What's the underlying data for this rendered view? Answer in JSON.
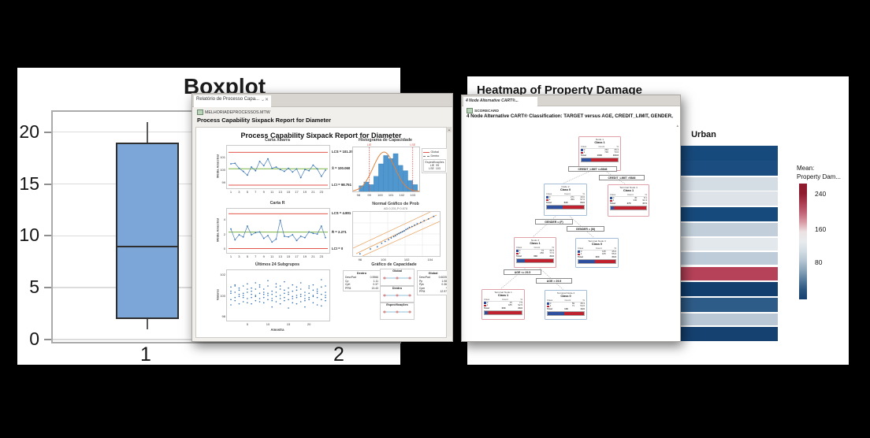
{
  "sixpack_window": {
    "tab_title": "Relatório de Processo Capa...",
    "tab_min": "⌄",
    "tab_close": "✕",
    "worksheet": "MELHORIADEPROCESSOS.MTW",
    "heading": "Process Capability Sixpack Report for Diameter",
    "report_title": "Process Capability Sixpack Report for Diameter"
  },
  "cart_window": {
    "tab_title": "4 Node Alternative CART®...",
    "worksheet": "SCORECARD",
    "heading": "4 Node Alternative CART® Classification: TARGET versus AGE, CREDIT_LIMIT, GENDER, ...",
    "class_colors": [
      "#2e4f9e",
      "#c0212e"
    ],
    "table_header": [
      "Class",
      "Count",
      "%"
    ],
    "total_label": "Total",
    "splits": [
      "CREDIT_LIMIT <=5846",
      "CREDIT_LIMIT >5846",
      "GENDER = (F)",
      "GENDER = (M)",
      "AGE <= 29.5",
      "AGE > 29.5"
    ],
    "nodes": [
      {
        "title": "Node 1",
        "cls": "Class 1",
        "accent": "red",
        "rows": [
          [
            "0",
            "264",
            "26.4"
          ],
          [
            "1",
            "736",
            "73.6"
          ]
        ],
        "total": [
          "1000",
          "100.0"
        ]
      },
      {
        "title": "Node 2",
        "cls": "Class 0",
        "accent": "blue",
        "rows": [
          [
            "0",
            "271",
            "43.0"
          ],
          [
            "1",
            "359",
            "57.0"
          ]
        ],
        "total": [
          "630",
          "63.0"
        ]
      },
      {
        "title": "Terminal Node 4",
        "cls": "Class 1",
        "accent": "red",
        "rows": [
          [
            "0",
            "30",
            "8.1"
          ],
          [
            "1",
            "340",
            "91.9"
          ]
        ],
        "total": [
          "370",
          "37.0"
        ]
      },
      {
        "title": "Node 3",
        "cls": "Class 1",
        "accent": "red",
        "rows": [
          [
            "0",
            "74",
            "22.4"
          ],
          [
            "1",
            "256",
            "77.6"
          ]
        ],
        "total": [
          "330",
          "33.0"
        ]
      },
      {
        "title": "Terminal Node 3",
        "cls": "Class 0",
        "accent": "blue",
        "rows": [
          [
            "0",
            "135",
            "45.0"
          ],
          [
            "1",
            "165",
            "55.0"
          ]
        ],
        "total": [
          "300",
          "30.0"
        ]
      },
      {
        "title": "Terminal Node 1",
        "cls": "Class 1",
        "accent": "red",
        "rows": [
          [
            "0",
            "15",
            "7.5"
          ],
          [
            "1",
            "185",
            "92.5"
          ]
        ],
        "total": [
          "200",
          "20.0"
        ]
      },
      {
        "title": "Terminal Node 2",
        "cls": "Class 0",
        "accent": "blue",
        "rows": [
          [
            "0",
            "59",
            "45.4"
          ],
          [
            "1",
            "71",
            "54.6"
          ]
        ],
        "total": [
          "130",
          "13.0"
        ]
      }
    ]
  },
  "chart_data": [
    {
      "id": "boxplot",
      "type": "boxplot",
      "title": "Boxplot",
      "yticks": [
        0,
        5,
        10,
        15,
        20
      ],
      "ylim": [
        -0.22,
        21.95
      ],
      "categories": [
        "1",
        "2"
      ],
      "series": [
        {
          "category": "1",
          "whisker_low": 1,
          "q1": 2,
          "median": 9,
          "q3": 19,
          "whisker_high": 21
        }
      ],
      "box_fill": "#7ba6d7",
      "box_border": "#2f2f2f",
      "note": "category 2 box occluded by overlapping window"
    },
    {
      "id": "xbar_chart",
      "type": "line",
      "title": "Carta Xbarra",
      "ylabel": "Média Amostral",
      "yticks": [
        101,
        100,
        99
      ],
      "xticks": [
        1,
        3,
        5,
        7,
        9,
        11,
        13,
        15,
        17,
        19,
        21,
        23
      ],
      "ylim": [
        98.5,
        101.9
      ],
      "ucl": 101.37,
      "center": 100.06,
      "lcl": 98.751,
      "labels": [
        "LCS = 101.370",
        "X̄ = 100.060",
        "LCI = 98.751"
      ],
      "values": [
        100.45,
        100.5,
        100.1,
        99.85,
        99.55,
        100.2,
        99.9,
        100.65,
        100.3,
        100.85,
        100.1,
        100.2,
        100.0,
        99.85,
        100.1,
        99.8,
        100.05,
        99.35,
        100.0,
        99.9,
        100.35,
        100.05,
        99.45,
        99.95
      ]
    },
    {
      "id": "r_chart",
      "type": "line",
      "title": "Carta R",
      "ylabel": "Média Amostral",
      "yticks": [
        4,
        2,
        0
      ],
      "xticks": [
        1,
        3,
        5,
        7,
        9,
        11,
        13,
        15,
        17,
        19,
        21,
        23
      ],
      "ylim": [
        -0.6,
        5.5
      ],
      "ucl": 4.801,
      "center": 2.271,
      "lcl": 0,
      "labels": [
        "LCS = 4.801",
        "R̄ = 2.271",
        "LCI = 0"
      ],
      "values": [
        2.7,
        1.2,
        1.9,
        1.6,
        3.1,
        1.9,
        2.2,
        2.3,
        1.4,
        1.8,
        0.9,
        1.3,
        3.9,
        1.7,
        1.6,
        1.9,
        1.1,
        1.7,
        1.5,
        2.3,
        2.1,
        2.0,
        3.1,
        1.5
      ]
    },
    {
      "id": "last24_subgroups",
      "type": "scatter",
      "title": "Últimos 24 Subgrupos",
      "ylabel": "Valores",
      "xlabel": "Amostra",
      "yticks": [
        102,
        100,
        98
      ],
      "xticks": [
        5,
        10,
        15,
        20
      ],
      "ylim": [
        97.6,
        102.4
      ],
      "groups": [
        [
          99.6,
          100.2,
          100.8,
          99.1,
          100.4
        ],
        [
          100.9,
          99.8,
          100.3,
          99.5,
          101.0
        ],
        [
          99.9,
          100.5,
          99.2,
          100.1,
          100.7
        ],
        [
          100.2,
          99.4,
          100.9,
          99.8,
          100.0
        ],
        [
          101.1,
          100.3,
          99.7,
          100.6,
          99.3
        ],
        [
          99.8,
          100.7,
          100.1,
          99.2,
          100.4
        ],
        [
          100.0,
          99.5,
          101.2,
          100.6,
          99.9
        ],
        [
          100.8,
          99.7,
          100.2,
          101.0,
          99.4
        ],
        [
          99.3,
          100.1,
          100.6,
          99.8,
          100.3
        ],
        [
          101.4,
          100.0,
          99.6,
          100.9,
          100.2
        ],
        [
          99.7,
          100.4,
          98.9,
          100.1,
          99.5
        ],
        [
          100.3,
          99.9,
          100.8,
          99.4,
          101.1
        ],
        [
          100.6,
          99.2,
          100.0,
          100.9,
          99.7
        ],
        [
          99.5,
          100.2,
          101.3,
          99.8,
          100.5
        ],
        [
          100.1,
          99.6,
          100.7,
          98.8,
          100.3
        ],
        [
          99.9,
          101.0,
          100.4,
          99.3,
          99.7
        ],
        [
          100.5,
          99.8,
          100.0,
          100.8,
          99.2
        ],
        [
          99.4,
          100.6,
          99.9,
          101.2,
          100.1
        ],
        [
          98.9,
          99.7,
          100.3,
          99.5,
          100.0
        ],
        [
          100.7,
          100.2,
          99.6,
          100.9,
          99.8
        ],
        [
          99.3,
          100.0,
          100.5,
          99.9,
          101.0
        ],
        [
          100.4,
          99.1,
          99.8,
          100.6,
          100.2
        ],
        [
          101.5,
          99.6,
          100.1,
          99.0,
          100.8
        ],
        [
          99.8,
          100.3,
          99.5,
          100.0,
          100.9
        ]
      ]
    },
    {
      "id": "capability_histogram",
      "type": "histogram",
      "title": "Histograma de Capacidade",
      "xticks": [
        98,
        99,
        100,
        101,
        102,
        103
      ],
      "xlim": [
        97.5,
        103.6
      ],
      "bin_start": 98.05,
      "bin_width": 0.45,
      "bin_heights": [
        0.15,
        0.25,
        0.18,
        0.4,
        0.73,
        0.95,
        0.87,
        1.0,
        0.69,
        0.55,
        0.29,
        0.18
      ],
      "curve": {
        "mean": 100.35,
        "sd": 1.0
      },
      "spec_lines": [
        {
          "label": "LIE",
          "x": 99
        },
        {
          "label": "LSE",
          "x": 103
        }
      ],
      "legend": [
        {
          "label": "Global",
          "style": "solid",
          "color": "#e2574c"
        },
        {
          "label": "Dentro",
          "style": "dashed",
          "color": "#777777"
        }
      ],
      "spec_box": {
        "title": "Especificações",
        "rows": [
          [
            "LIE",
            "99"
          ],
          [
            "LSE",
            "103"
          ]
        ]
      },
      "bar_color": "#4f97ce",
      "curve_color": "#e0813c"
    },
    {
      "id": "normal_probability_plot",
      "type": "scatter",
      "title": "Normal Gráfico de Prob",
      "subtitle": "AD:0.201,P:0.878",
      "xticks": [
        98,
        100,
        102,
        104
      ],
      "point_color": "#2e6db4",
      "line_color": "#e8a25e",
      "points": [
        [
          0.08,
          0.05
        ],
        [
          0.2,
          0.16
        ],
        [
          0.28,
          0.21
        ],
        [
          0.33,
          0.29
        ],
        [
          0.37,
          0.33
        ],
        [
          0.41,
          0.37
        ],
        [
          0.44,
          0.41
        ],
        [
          0.47,
          0.44
        ],
        [
          0.49,
          0.46
        ],
        [
          0.51,
          0.49
        ],
        [
          0.53,
          0.51
        ],
        [
          0.55,
          0.53
        ],
        [
          0.57,
          0.55
        ],
        [
          0.59,
          0.57
        ],
        [
          0.61,
          0.6
        ],
        [
          0.63,
          0.62
        ],
        [
          0.65,
          0.65
        ],
        [
          0.68,
          0.67
        ],
        [
          0.71,
          0.7
        ],
        [
          0.74,
          0.73
        ],
        [
          0.78,
          0.76
        ],
        [
          0.82,
          0.8
        ],
        [
          0.87,
          0.84
        ],
        [
          0.93,
          0.9
        ]
      ]
    },
    {
      "id": "capability_summary",
      "type": "table",
      "title": "Gráfico de Capacidade",
      "within": {
        "title": "Dentro",
        "rows": [
          [
            "DesvPad",
            "0.5966"
          ],
          [
            "Cp",
            "1.11"
          ],
          [
            "CpK",
            "0.37"
          ],
          [
            "PPM",
            "13.43"
          ]
        ]
      },
      "overall": {
        "title": "Global",
        "rows": [
          [
            "DesvPad",
            "0.6025"
          ],
          [
            "Pp",
            "1.08"
          ],
          [
            "Ppk",
            "0.36"
          ],
          [
            "Cpm",
            "*"
          ],
          [
            "PPM",
            "12.97"
          ]
        ]
      },
      "interval_labels": [
        "Global",
        "Dentro",
        "Especificações"
      ]
    },
    {
      "id": "property_damage_heatmap",
      "type": "heatmap",
      "title": "Heatmap of Property Damage",
      "columns": [
        "Urban"
      ],
      "legend": {
        "title": [
          "Mean:",
          "Property Dam..."
        ],
        "ticks": [
          240,
          160,
          80
        ]
      },
      "rows": [
        {
          "color": "#174a7c",
          "value": 35
        },
        {
          "color": "#1b4d80",
          "value": 38
        },
        {
          "color": "#d4dce4",
          "value": 148
        },
        {
          "color": "#dde3e9",
          "value": 152
        },
        {
          "color": "#174a7c",
          "value": 35
        },
        {
          "color": "#c2cfda",
          "value": 128
        },
        {
          "color": "#e3e8ec",
          "value": 155
        },
        {
          "color": "#becbd8",
          "value": 122
        },
        {
          "color": "#b64259",
          "value": 230
        },
        {
          "color": "#123f6e",
          "value": 25
        },
        {
          "color": "#2e5c88",
          "value": 62
        },
        {
          "color": "#bac8d6",
          "value": 130
        },
        {
          "color": "#154170",
          "value": 30
        }
      ],
      "gradient": [
        "#8e1b2e",
        "#8e1b2e",
        "#aa3c50",
        "#c06276",
        "#d89aa4",
        "#ece2e3",
        "#e8ebed",
        "#d3dde4",
        "#b5c5d2",
        "#8aa4b9",
        "#577c9c",
        "#2b567f",
        "#16406f"
      ]
    }
  ]
}
